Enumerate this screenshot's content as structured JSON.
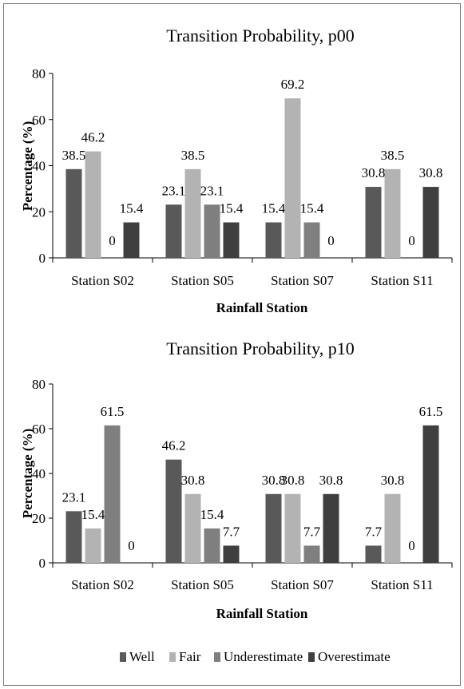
{
  "chart_data": [
    {
      "type": "bar",
      "title": "Transition Probability, p00",
      "xlabel": "Rainfall Station",
      "ylabel": "Percentage (%)",
      "ylim": [
        0,
        80
      ],
      "yticks": [
        "0",
        "20",
        "40",
        "60",
        "80"
      ],
      "categories": [
        "Station S02",
        "Station S05",
        "Station S07",
        "Station S11"
      ],
      "series": [
        {
          "name": "Well",
          "color": "#595959",
          "values": [
            38.5,
            23.1,
            15.4,
            30.8
          ],
          "labels": [
            "38.5",
            "23.1",
            "15.4",
            "30.8"
          ]
        },
        {
          "name": "Fair",
          "color": "#b3b3b3",
          "values": [
            46.2,
            38.5,
            69.2,
            38.5
          ],
          "labels": [
            "46.2",
            "38.5",
            "69.2",
            "38.5"
          ]
        },
        {
          "name": "Underestimate",
          "color": "#7f7f7f",
          "values": [
            0,
            23.1,
            15.4,
            0
          ],
          "labels": [
            "0",
            "23.1",
            "15.4",
            "0"
          ]
        },
        {
          "name": "Overestimate",
          "color": "#3f3f3f",
          "values": [
            15.4,
            15.4,
            0,
            30.8
          ],
          "labels": [
            "15.4",
            "15.4",
            "0",
            "30.8"
          ]
        }
      ]
    },
    {
      "type": "bar",
      "title": "Transition Probability, p10",
      "xlabel": "Rainfall Station",
      "ylabel": "Percentage (%)",
      "ylim": [
        0,
        80
      ],
      "yticks": [
        "0",
        "20",
        "40",
        "60",
        "80"
      ],
      "categories": [
        "Station S02",
        "Station S05",
        "Station S07",
        "Station S11"
      ],
      "series": [
        {
          "name": "Well",
          "color": "#595959",
          "values": [
            23.1,
            46.2,
            30.8,
            7.7
          ],
          "labels": [
            "23.1",
            "46.2",
            "30.8",
            "7.7"
          ]
        },
        {
          "name": "Fair",
          "color": "#b3b3b3",
          "values": [
            15.4,
            30.8,
            30.8,
            30.8
          ],
          "labels": [
            "15.4",
            "30.8",
            "30.8",
            "30.8"
          ]
        },
        {
          "name": "Underestimate",
          "color": "#7f7f7f",
          "values": [
            61.5,
            15.4,
            7.7,
            0
          ],
          "labels": [
            "61.5",
            "15.4",
            "7.7",
            "0"
          ]
        },
        {
          "name": "Overestimate",
          "color": "#3f3f3f",
          "values": [
            0,
            7.7,
            30.8,
            61.5
          ],
          "labels": [
            "0",
            "7.7",
            "30.8",
            "61.5"
          ]
        }
      ]
    }
  ],
  "legend": {
    "placement": "bottom",
    "items": [
      {
        "name": "Well",
        "color": "#595959"
      },
      {
        "name": "Fair",
        "color": "#b3b3b3"
      },
      {
        "name": "Underestimate",
        "color": "#7f7f7f"
      },
      {
        "name": "Overestimate",
        "color": "#3f3f3f"
      }
    ]
  }
}
